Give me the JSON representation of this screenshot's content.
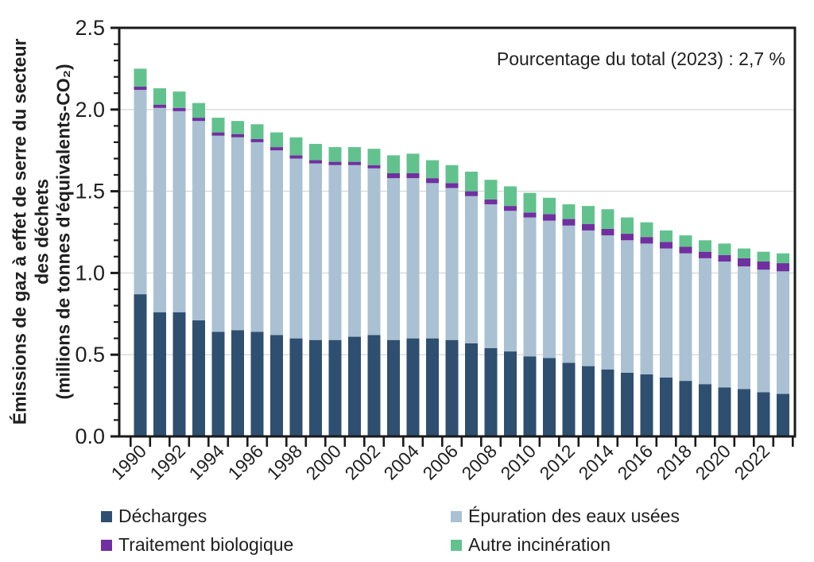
{
  "chart_data": {
    "type": "bar",
    "stacked": true,
    "title_annotation": "Pourcentage du total (2023) : 2,7 %",
    "ylabel_lines": [
      "Émissions de gaz à effet de serre du secteur",
      "des déchets",
      "(millions de tonnes d'équivalents-CO₂)"
    ],
    "ylim": [
      0,
      2.5
    ],
    "ytick_labels": [
      "0.0",
      "0.5",
      "1.0",
      "1.5",
      "2.0",
      "2.5"
    ],
    "ytick_minor_step": 0.1,
    "grid": "horizontal",
    "grid_values": [
      0.5,
      1.0,
      1.5,
      2.0
    ],
    "legend_position": "bottom",
    "x": [
      1990,
      1991,
      1992,
      1993,
      1994,
      1995,
      1996,
      1997,
      1998,
      1999,
      2000,
      2001,
      2002,
      2003,
      2004,
      2005,
      2006,
      2007,
      2008,
      2009,
      2010,
      2011,
      2012,
      2013,
      2014,
      2015,
      2016,
      2017,
      2018,
      2019,
      2020,
      2021,
      2022,
      2023
    ],
    "xtick_labels": [
      "1990",
      "1992",
      "1994",
      "1996",
      "1998",
      "2000",
      "2002",
      "2004",
      "2006",
      "2008",
      "2010",
      "2012",
      "2014",
      "2016",
      "2018",
      "2020",
      "2022"
    ],
    "series": [
      {
        "name": "Décharges",
        "color": "#2f4f71",
        "values": [
          0.87,
          0.76,
          0.76,
          0.71,
          0.64,
          0.65,
          0.64,
          0.62,
          0.6,
          0.59,
          0.59,
          0.61,
          0.62,
          0.59,
          0.6,
          0.6,
          0.59,
          0.57,
          0.54,
          0.52,
          0.49,
          0.48,
          0.45,
          0.43,
          0.41,
          0.39,
          0.38,
          0.36,
          0.34,
          0.32,
          0.3,
          0.29,
          0.27,
          0.26
        ]
      },
      {
        "name": "Épuration des eaux usées",
        "color": "#a9c1d2",
        "values": [
          1.25,
          1.25,
          1.23,
          1.22,
          1.2,
          1.18,
          1.16,
          1.13,
          1.1,
          1.08,
          1.07,
          1.05,
          1.02,
          0.99,
          0.98,
          0.95,
          0.93,
          0.9,
          0.88,
          0.86,
          0.85,
          0.84,
          0.84,
          0.83,
          0.82,
          0.81,
          0.8,
          0.79,
          0.78,
          0.77,
          0.77,
          0.75,
          0.75,
          0.75
        ]
      },
      {
        "name": "Traitement biologique",
        "color": "#7030a0",
        "values": [
          0.02,
          0.02,
          0.02,
          0.02,
          0.02,
          0.02,
          0.02,
          0.02,
          0.02,
          0.02,
          0.02,
          0.02,
          0.02,
          0.03,
          0.03,
          0.03,
          0.03,
          0.03,
          0.03,
          0.03,
          0.03,
          0.04,
          0.04,
          0.04,
          0.04,
          0.04,
          0.04,
          0.04,
          0.04,
          0.04,
          0.04,
          0.05,
          0.05,
          0.05
        ]
      },
      {
        "name": "Autre incinération",
        "color": "#62c28e",
        "values": [
          0.11,
          0.1,
          0.1,
          0.09,
          0.09,
          0.08,
          0.09,
          0.09,
          0.11,
          0.1,
          0.09,
          0.09,
          0.1,
          0.11,
          0.12,
          0.11,
          0.11,
          0.12,
          0.12,
          0.12,
          0.12,
          0.1,
          0.09,
          0.11,
          0.12,
          0.1,
          0.09,
          0.07,
          0.07,
          0.07,
          0.07,
          0.06,
          0.06,
          0.06
        ]
      }
    ]
  }
}
